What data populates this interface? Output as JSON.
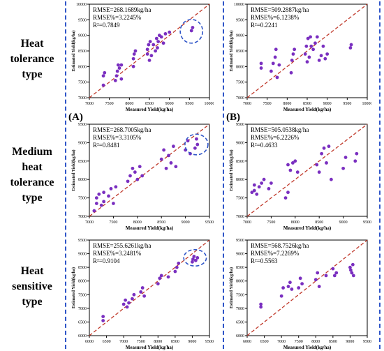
{
  "row_labels": [
    [
      "Heat",
      "tolerance",
      "type"
    ],
    [
      "Medium",
      "heat",
      "tolerance",
      "type"
    ],
    [
      "Heat",
      "sensitive",
      "type"
    ]
  ],
  "panel_letters": [
    "(A)",
    "(B)"
  ],
  "colors": {
    "point": "#7a2fc0",
    "diagonal": "#c0392b",
    "circle": "#2f55c8",
    "separator": "#2f55c8"
  },
  "chart_data": [
    {
      "type": "scatter",
      "row": 0,
      "col": 0,
      "xlabel": "Measured Yield(kg/ha)",
      "ylabel": "Estimated Yield(kg/ha)",
      "xlim": [
        7000,
        10000
      ],
      "ylim": [
        7000,
        10000
      ],
      "xticks": [
        "7000",
        "7500",
        "8000",
        "8500",
        "9000",
        "9500",
        "10000"
      ],
      "yticks": [
        "7000",
        "7500",
        "8000",
        "8500",
        "9000",
        "9500",
        "10000"
      ],
      "stats": [
        "RMSE=268.1689kg/ha",
        "RMSE%=3.2245%",
        "R²=0.7849"
      ],
      "highlight_circle": {
        "cx": 9550,
        "cy": 9130,
        "rx": 280,
        "ry": 380
      },
      "points": [
        [
          7350,
          7400
        ],
        [
          7350,
          7700
        ],
        [
          7380,
          7800
        ],
        [
          7650,
          7550
        ],
        [
          7680,
          7700
        ],
        [
          7700,
          7850
        ],
        [
          7720,
          8050
        ],
        [
          7750,
          7950
        ],
        [
          7800,
          7600
        ],
        [
          7800,
          8050
        ],
        [
          8100,
          8000
        ],
        [
          8100,
          8250
        ],
        [
          8120,
          8400
        ],
        [
          8150,
          8500
        ],
        [
          8450,
          8400
        ],
        [
          8450,
          8550
        ],
        [
          8480,
          8700
        ],
        [
          8500,
          8200
        ],
        [
          8520,
          8800
        ],
        [
          8550,
          8350
        ],
        [
          8600,
          8700
        ],
        [
          8650,
          8500
        ],
        [
          8680,
          8900
        ],
        [
          8700,
          8600
        ],
        [
          8720,
          8800
        ],
        [
          8750,
          9000
        ],
        [
          8800,
          8950
        ],
        [
          8850,
          8750
        ],
        [
          8900,
          9050
        ],
        [
          9000,
          9100
        ],
        [
          9550,
          9150
        ],
        [
          9580,
          9250
        ]
      ]
    },
    {
      "type": "scatter",
      "row": 0,
      "col": 1,
      "xlabel": "Measured Yield(kg/ha)",
      "ylabel": "Estimated Yield(kg/ha)",
      "xlim": [
        7000,
        10000
      ],
      "ylim": [
        7000,
        10000
      ],
      "xticks": [
        "7000",
        "7500",
        "8000",
        "8500",
        "9000",
        "9500",
        "10000"
      ],
      "yticks": [
        "7000",
        "7500",
        "8000",
        "8500",
        "9000",
        "9500",
        "10000"
      ],
      "stats": [
        "RMSE=509.2887kg/ha",
        "RMSE%=6.1238%",
        "R²=0.2241"
      ],
      "points": [
        [
          7350,
          7950
        ],
        [
          7350,
          8100
        ],
        [
          7600,
          7850
        ],
        [
          7650,
          8100
        ],
        [
          7700,
          8300
        ],
        [
          7720,
          8550
        ],
        [
          7750,
          7650
        ],
        [
          7800,
          8050
        ],
        [
          8100,
          7800
        ],
        [
          8120,
          8200
        ],
        [
          8150,
          8400
        ],
        [
          8180,
          8550
        ],
        [
          8450,
          8400
        ],
        [
          8480,
          8650
        ],
        [
          8500,
          8150
        ],
        [
          8520,
          8900
        ],
        [
          8550,
          8300
        ],
        [
          8580,
          8950
        ],
        [
          8600,
          8650
        ],
        [
          8650,
          8550
        ],
        [
          8700,
          8750
        ],
        [
          8750,
          8950
        ],
        [
          8800,
          8200
        ],
        [
          8850,
          8350
        ],
        [
          8900,
          8650
        ],
        [
          8950,
          8250
        ],
        [
          9000,
          8400
        ],
        [
          9580,
          8600
        ],
        [
          9600,
          8700
        ]
      ]
    },
    {
      "type": "scatter",
      "row": 1,
      "col": 0,
      "xlabel": "Measured Yield(kg/ha)",
      "ylabel": "Estimated Yield(kg/ha)",
      "xlim": [
        7000,
        9500
      ],
      "ylim": [
        7000,
        9500
      ],
      "xticks": [
        "7000",
        "7500",
        "8000",
        "8500",
        "9000",
        "9500"
      ],
      "yticks": [
        "7000",
        "7500",
        "8000",
        "8500",
        "9000",
        "9500"
      ],
      "stats": [
        "RMSE=268.7005kg/ha",
        "RMSE%=3.3105%",
        "R²=0.8481"
      ],
      "highlight_circle": {
        "cx": 9230,
        "cy": 8950,
        "rx": 240,
        "ry": 280
      },
      "points": [
        [
          7100,
          7150
        ],
        [
          7150,
          7350
        ],
        [
          7150,
          7500
        ],
        [
          7200,
          7600
        ],
        [
          7250,
          7300
        ],
        [
          7300,
          7400
        ],
        [
          7300,
          7650
        ],
        [
          7400,
          7550
        ],
        [
          7450,
          7750
        ],
        [
          7500,
          7350
        ],
        [
          7550,
          7800
        ],
        [
          7800,
          7950
        ],
        [
          7850,
          8100
        ],
        [
          7900,
          8300
        ],
        [
          7950,
          8200
        ],
        [
          8000,
          8000
        ],
        [
          8050,
          8350
        ],
        [
          8100,
          8100
        ],
        [
          8500,
          8550
        ],
        [
          8550,
          8800
        ],
        [
          8600,
          8300
        ],
        [
          8650,
          8650
        ],
        [
          8700,
          8450
        ],
        [
          8750,
          8900
        ],
        [
          8800,
          8350
        ],
        [
          9000,
          8800
        ],
        [
          9050,
          9050
        ],
        [
          9100,
          8700
        ],
        [
          9200,
          8850
        ],
        [
          9230,
          9100
        ],
        [
          9250,
          8950
        ]
      ]
    },
    {
      "type": "scatter",
      "row": 1,
      "col": 1,
      "xlabel": "Measured Yield(kg/ha)",
      "ylabel": "Estimated Yield(kg/ha)",
      "xlim": [
        7000,
        9500
      ],
      "ylim": [
        7000,
        9500
      ],
      "xticks": [
        "7000",
        "7500",
        "8000",
        "8500",
        "9000",
        "9500"
      ],
      "yticks": [
        "7000",
        "7500",
        "8000",
        "8500",
        "9000",
        "9500"
      ],
      "stats": [
        "RMSE=505.0538kg/ha",
        "RMSE%=6.2226%",
        "R²=0.4633"
      ],
      "points": [
        [
          7100,
          7650
        ],
        [
          7150,
          7700
        ],
        [
          7150,
          7850
        ],
        [
          7200,
          7600
        ],
        [
          7250,
          7800
        ],
        [
          7300,
          7900
        ],
        [
          7350,
          8000
        ],
        [
          7450,
          7750
        ],
        [
          7500,
          7900
        ],
        [
          7800,
          7500
        ],
        [
          7850,
          7650
        ],
        [
          7850,
          8400
        ],
        [
          7900,
          8250
        ],
        [
          7950,
          8450
        ],
        [
          8000,
          8500
        ],
        [
          8050,
          8200
        ],
        [
          8450,
          8400
        ],
        [
          8500,
          8200
        ],
        [
          8550,
          8700
        ],
        [
          8600,
          8850
        ],
        [
          8650,
          8450
        ],
        [
          8700,
          8900
        ],
        [
          8750,
          8000
        ],
        [
          9000,
          8300
        ],
        [
          9050,
          8600
        ],
        [
          9250,
          8500
        ],
        [
          9280,
          8700
        ]
      ]
    },
    {
      "type": "scatter",
      "row": 2,
      "col": 0,
      "xlabel": "Measured Yield(kg/ha)",
      "ylabel": "Estimated Yield(kg/ha)",
      "xlim": [
        6000,
        9500
      ],
      "ylim": [
        6000,
        9500
      ],
      "xticks": [
        "6000",
        "6500",
        "7000",
        "7500",
        "8000",
        "8500",
        "9000",
        "9500"
      ],
      "yticks": [
        "6000",
        "6500",
        "7000",
        "7500",
        "8000",
        "8500",
        "9000",
        "9500"
      ],
      "stats": [
        "RMSE=255.6261kg/ha",
        "RMSE%=3.2481%",
        "R²=0.9104"
      ],
      "highlight_circle": {
        "cx": 9080,
        "cy": 8850,
        "rx": 330,
        "ry": 300
      },
      "points": [
        [
          6400,
          6550
        ],
        [
          6400,
          6700
        ],
        [
          7000,
          7150
        ],
        [
          7050,
          7300
        ],
        [
          7100,
          7050
        ],
        [
          7150,
          7200
        ],
        [
          7250,
          7350
        ],
        [
          7300,
          7500
        ],
        [
          7500,
          7600
        ],
        [
          7550,
          7750
        ],
        [
          7600,
          7450
        ],
        [
          8000,
          7900
        ],
        [
          8050,
          8100
        ],
        [
          8100,
          8200
        ],
        [
          8300,
          8150
        ],
        [
          8500,
          8350
        ],
        [
          8550,
          8500
        ],
        [
          8600,
          8650
        ],
        [
          9000,
          8700
        ],
        [
          9020,
          8800
        ],
        [
          9050,
          8900
        ],
        [
          9100,
          8750
        ],
        [
          9150,
          8850
        ]
      ]
    },
    {
      "type": "scatter",
      "row": 2,
      "col": 1,
      "xlabel": "Measured Yield(kg/ha)",
      "ylabel": "Estimated Yield(kg/ha)",
      "xlim": [
        6000,
        9500
      ],
      "ylim": [
        6000,
        9500
      ],
      "xticks": [
        "6000",
        "6500",
        "7000",
        "7500",
        "8000",
        "8500",
        "9000",
        "9500"
      ],
      "yticks": [
        "6000",
        "6500",
        "7000",
        "7500",
        "8000",
        "8500",
        "9000",
        "9500"
      ],
      "stats": [
        "RMSE=568.7526kg/ha",
        "RMSE%=7.2269%",
        "R²=0.5563"
      ],
      "points": [
        [
          6400,
          7050
        ],
        [
          6400,
          7150
        ],
        [
          7000,
          7450
        ],
        [
          7050,
          7750
        ],
        [
          7200,
          7800
        ],
        [
          7250,
          7950
        ],
        [
          7300,
          7700
        ],
        [
          7500,
          7750
        ],
        [
          7550,
          8100
        ],
        [
          7600,
          7900
        ],
        [
          8000,
          8050
        ],
        [
          8050,
          8300
        ],
        [
          8100,
          7800
        ],
        [
          8300,
          8200
        ],
        [
          8500,
          8450
        ],
        [
          8550,
          8200
        ],
        [
          8600,
          8300
        ],
        [
          9000,
          8500
        ],
        [
          9020,
          8400
        ],
        [
          9050,
          8300
        ],
        [
          9080,
          8600
        ],
        [
          9100,
          8200
        ]
      ]
    }
  ]
}
